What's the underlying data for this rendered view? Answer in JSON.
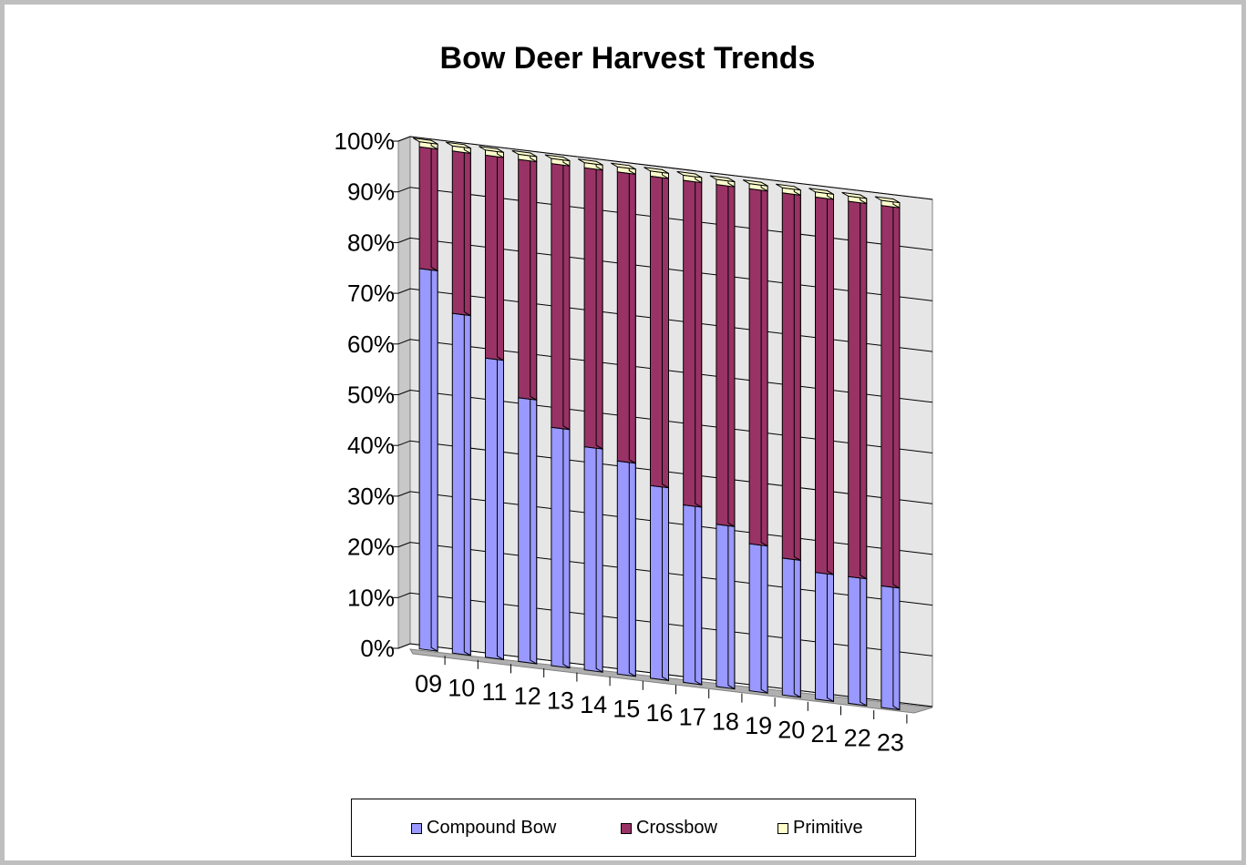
{
  "chart_data": {
    "type": "bar",
    "stacked": "percent",
    "title": "Bow Deer Harvest Trends",
    "categories": [
      "09",
      "10",
      "11",
      "12",
      "13",
      "14",
      "15",
      "16",
      "17",
      "18",
      "19",
      "20",
      "21",
      "22",
      "23"
    ],
    "y_tick_labels": [
      "0%",
      "10%",
      "20%",
      "30%",
      "40%",
      "50%",
      "60%",
      "70%",
      "80%",
      "90%",
      "100%"
    ],
    "ylim": [
      0,
      100
    ],
    "grid": true,
    "legend_position": "bottom",
    "series": [
      {
        "name": "Compound Bow",
        "color": "#9999ff",
        "values": [
          75,
          67,
          59,
          52,
          47,
          44,
          42,
          38,
          35,
          32,
          29,
          27,
          25,
          25,
          24
        ]
      },
      {
        "name": "Crossbow",
        "color": "#993366",
        "values": [
          24,
          32,
          40,
          47,
          52,
          55,
          57,
          61,
          64,
          67,
          70,
          72,
          74,
          74,
          75
        ]
      },
      {
        "name": "Primitive",
        "color": "#ffffcc",
        "values": [
          1,
          1,
          1,
          1,
          1,
          1,
          1,
          1,
          1,
          1,
          1,
          1,
          1,
          1,
          1
        ]
      }
    ]
  }
}
